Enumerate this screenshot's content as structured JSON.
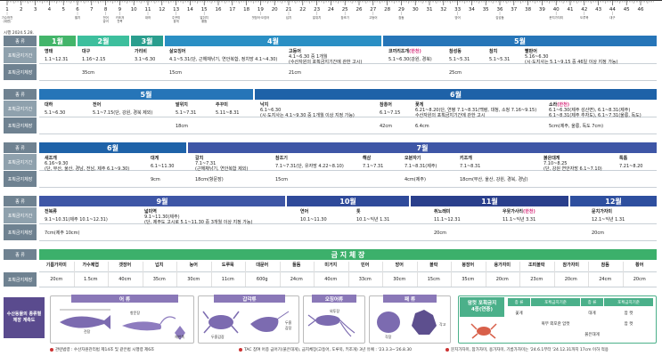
{
  "ruler": {
    "ticks": [
      "1",
      "2",
      "3",
      "4",
      "5",
      "6",
      "7",
      "8",
      "9",
      "10",
      "11",
      "12",
      "13",
      "14",
      "15",
      "16",
      "17",
      "18",
      "19",
      "20",
      "21",
      "22",
      "23",
      "24",
      "25",
      "26",
      "27",
      "28",
      "29",
      "30",
      "31",
      "32",
      "33",
      "34",
      "35",
      "36",
      "37",
      "38",
      "39",
      "40",
      "41",
      "42",
      "43",
      "44",
      "45",
      "46"
    ],
    "notes": [
      {
        "n": "1",
        "t": "기수하천",
        "t2": "(대한)"
      },
      {
        "n": "6",
        "t": "멸치"
      },
      {
        "n": "8",
        "t": "전어",
        "t2": "숭어"
      },
      {
        "n": "9",
        "t": "키조개",
        "t2": "전복"
      },
      {
        "n": "11",
        "t": "대하"
      },
      {
        "n": "13",
        "t": "주꾸미",
        "t2": "꽃게"
      },
      {
        "n": "15",
        "t": "말쥐치",
        "t2": "황돔"
      },
      {
        "n": "19",
        "t": "갯장어·오징어"
      },
      {
        "n": "21",
        "t": "넙치"
      },
      {
        "n": "23",
        "t": "말쥐치"
      },
      {
        "n": "25",
        "t": "참조기"
      },
      {
        "n": "27",
        "t": "고등어"
      },
      {
        "n": "29",
        "t": "참돔"
      },
      {
        "n": "33",
        "t": "방어"
      },
      {
        "n": "36",
        "t": "감성돔"
      },
      {
        "n": "40",
        "t": "문치가자미"
      },
      {
        "n": "42",
        "t": "도루묵"
      },
      {
        "n": "44",
        "t": "대구"
      }
    ],
    "stamp": "시행 2024.5.28."
  },
  "labels": {
    "species": "종  류",
    "period": "포획금지기간",
    "length": "포획금지체장"
  },
  "row1": {
    "months": [
      {
        "t": "1월"
      },
      {
        "t": "2월"
      },
      {
        "t": "3월"
      },
      {
        "t": "4월"
      },
      {
        "t": "5월"
      }
    ],
    "cells": [
      {
        "name": "명태",
        "period": "1.1~12.31",
        "len": ""
      },
      {
        "name": "대구",
        "period": "1.16~2.15",
        "len": "35cm"
      },
      {
        "name": "가리비",
        "period": "3.1~6.30",
        "len": ""
      },
      {
        "name": "살오징어",
        "period": "4.1~5.31(단, 근해채낚기, 연안복합, 정치망 4.1~4.30)",
        "len": "15cm"
      },
      {
        "name": "고등어",
        "period": "4.1~6.30 중 1개월",
        "period2": "(수산자원의 포획금지기간에 관한 고시)",
        "len": "21cm"
      },
      {
        "name": "코끼리조개",
        "extra": "(한천)",
        "period": "5.1~6.30(강원, 경북)",
        "len": ""
      },
      {
        "name": "참성동",
        "period": "5.1~5.31",
        "len": "25cm"
      },
      {
        "name": "참치",
        "period": "5.1~5.31",
        "len": ""
      },
      {
        "name": "빨판어",
        "period": "5.16~6.30",
        "period2": "(시·도지사는 5.1~9.15 중 46일 이상 지정 가능)",
        "len": ""
      }
    ]
  },
  "row2": {
    "months": [
      {
        "t": "5월"
      },
      {
        "t": "6월"
      }
    ],
    "cells": [
      {
        "name": "대하",
        "period": "5.1~6.30",
        "len": ""
      },
      {
        "name": "전어",
        "period": "5.1~7.15(단, 강원, 경북 제외)",
        "len": ""
      },
      {
        "name": "발위치",
        "period": "5.1~7.31",
        "len": "18cm"
      },
      {
        "name": "주꾸미",
        "period": "5.11~8.31",
        "len": ""
      },
      {
        "name": "낙지",
        "period": "6.1~6.30",
        "period2": "(시·도지사는 4.1~9.30 중 1개월 이상 지정 가능)",
        "len": ""
      },
      {
        "name": "참홍어",
        "period": "6.1~7.15",
        "len": "42cm"
      },
      {
        "name": "꽃게",
        "period": "6.21~8.20(단, 연평 7.1~8.31(백령, 대청, 소청 7.16~9.15)",
        "period2": "수산자원의 포획금지기간에 관한 고시",
        "len": "6.4cm"
      },
      {
        "name": "소라",
        "extra": "(한천)",
        "period": "6.1~6.30(제주 성산면), 6.1~8.31(제주)",
        "period2": "6.1~8.31(제주 추자도), 6.1~7.31(울릉, 독도)",
        "len": "5cm(제주, 울릉, 독도 7cm)"
      }
    ]
  },
  "row3": {
    "months": [
      {
        "t": "6월"
      },
      {
        "t": "7월"
      }
    ],
    "cells": [
      {
        "name": "새조개",
        "period": "6.16~9.30",
        "period2": "(단, 부산, 울산, 경남, 전남, 제주 6.1~9.30)",
        "len": ""
      },
      {
        "name": "대게",
        "period": "6.1~11.30",
        "len": "9cm"
      },
      {
        "name": "갈치",
        "period": "7.1~7.31",
        "period2": "(근해채낚기, 연안복합 제외)",
        "len": "18cm(항문장)"
      },
      {
        "name": "참조기",
        "period": "7.1~7.31(단, 유자망 4.22~8.10)",
        "len": "15cm"
      },
      {
        "name": "해삼",
        "period": "7.1~7.31",
        "len": ""
      },
      {
        "name": "오분자기",
        "period": "7.1~8.31(제주)",
        "len": "4cm(제주)"
      },
      {
        "name": "키조개",
        "period": "7.1~8.31",
        "len": "18cm(부산, 울산, 강원, 경북, 경남)"
      },
      {
        "name": "붉은대게",
        "period": "7.10~8.25",
        "period2": "(단, 강원 연안자망 6.1~7.10)",
        "len": ""
      },
      {
        "name": "톡톰",
        "period": "7.21~8.20",
        "len": ""
      }
    ]
  },
  "row4": {
    "months": [
      {
        "t": "9월"
      },
      {
        "t": "10월"
      },
      {
        "t": "11월"
      },
      {
        "t": "12월"
      }
    ],
    "cells": [
      {
        "name": "전복류",
        "period": "9.1~10.31(제주 10.1~12.31)",
        "len": "7cm(제주 10cm)"
      },
      {
        "name": "넓미역",
        "period": "9.1~11.30(제주)",
        "period2": "(단, 제주도 고시로 5.1~11.30 중 3개월 이상 지정 가능)",
        "len": ""
      },
      {
        "name": "연어",
        "period": "10.1~11.30",
        "len": ""
      },
      {
        "name": "톳",
        "period": "10.1~익년 1.31",
        "len": ""
      },
      {
        "name": "취노래미",
        "period": "11.1~12.31",
        "len": "20cm"
      },
      {
        "name": "우뭇가사리",
        "extra": "(한천)",
        "period": "11.1~익년 3.31",
        "len": ""
      },
      {
        "name": "문치가자미",
        "period": "12.1~익년 1.31",
        "len": "20cm"
      }
    ]
  },
  "row5": {
    "header": "금  지  체  장",
    "cells": [
      {
        "name": "기름가자미",
        "len": "20cm"
      },
      {
        "name": "가수제엽",
        "len": "1.5cm"
      },
      {
        "name": "갯장어",
        "len": "40cm"
      },
      {
        "name": "넙치",
        "len": "35cm"
      },
      {
        "name": "농어",
        "len": "30cm"
      },
      {
        "name": "도루묵",
        "len": "11cm"
      },
      {
        "name": "대문어",
        "len": "600g"
      },
      {
        "name": "돌돔",
        "len": "24cm"
      },
      {
        "name": "미거지",
        "len": "40cm"
      },
      {
        "name": "민어",
        "len": "33cm"
      },
      {
        "name": "방어",
        "len": "30cm"
      },
      {
        "name": "볼락",
        "len": "15cm"
      },
      {
        "name": "붕장어",
        "len": "35cm"
      },
      {
        "name": "용가자미",
        "len": "20cm"
      },
      {
        "name": "조피볼락",
        "len": "23cm"
      },
      {
        "name": "참가자미",
        "len": "20cm"
      },
      {
        "name": "참돔",
        "len": "24cm"
      },
      {
        "name": "황어",
        "len": "20cm"
      }
    ]
  },
  "bottom": {
    "badge": "수산동물의 종류별",
    "badge2": "체장 계측도",
    "fish_h": "어 류",
    "fish_labels": [
      "전장",
      "항문장",
      "체반폭"
    ],
    "crust_h": "갑각류",
    "crust_labels": [
      "두흉갑장",
      "두흉",
      "갑장"
    ],
    "ceph_h": "오징어류",
    "ceph_labels": [
      "외투장"
    ],
    "shell_h": "패 류",
    "shell_labels": [
      "각장",
      "각고"
    ],
    "crab_h": "암컷 포획금지",
    "crab_h2": "4종(연중)",
    "crab_cols": [
      "종 류",
      "포획금지기준",
      "종 류",
      "포획금지기준"
    ],
    "crab_rows": [
      [
        "꽃게",
        "",
        "대게",
        "암 컷"
      ],
      [
        "",
        "복부 외포란 암컷",
        "",
        "암 컷"
      ],
      [
        "",
        "",
        "붉은대게",
        ""
      ]
    ],
    "foot1": "관련법령 : 수산자원관리법 제14조 및 같은법 시행령 제6조",
    "foot2": "TAC 참여 어종 금어기(붉은대게), 금지체장(고등어, 도루묵, 키조개) 3년 유예 : '23.3.3~'26.8.30",
    "foot3": "문치가자미, 참가자미, 용가자미, 기름가자미는 '24.6.1부터 '24.12.31까지 17cm 이하 적용"
  }
}
